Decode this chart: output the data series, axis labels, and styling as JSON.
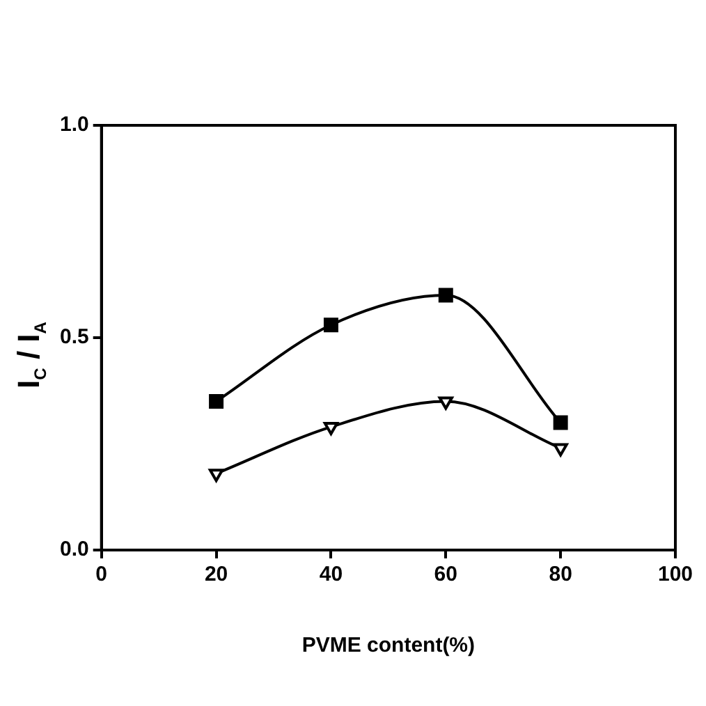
{
  "chart_data": {
    "type": "line",
    "xlabel": "PVME content(%)",
    "ylabel": "I$_{C}$ / I$_{A}$",
    "x": [
      20,
      40,
      60,
      80
    ],
    "series": [
      {
        "color": "#000000",
        "marker": "square",
        "values": [
          0.35,
          0.53,
          0.6,
          0.3
        ]
      },
      {
        "color": "#000000",
        "marker": "triangle",
        "values": [
          0.18,
          0.29,
          0.35,
          0.24
        ]
      }
    ],
    "xlim": [
      0,
      100
    ],
    "xticks": [
      0,
      20,
      40,
      60,
      80,
      100
    ],
    "ylim": [
      0,
      1
    ],
    "yticks": [
      {
        "value": 0,
        "label": "0.0"
      },
      {
        "value": 0.5,
        "label": "0.5"
      },
      {
        "value": 1,
        "label": "1.0"
      }
    ],
    "grid": false,
    "legend": false
  }
}
